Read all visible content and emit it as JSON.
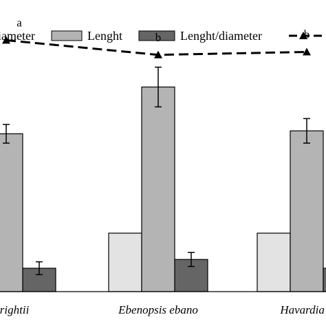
{
  "chart_data": {
    "type": "bar",
    "categories": [
      "a wrightii",
      "Ebenopsis ebano",
      "Havardia p"
    ],
    "series": [
      {
        "name": "iameter",
        "color": "#e3e3e3",
        "values": [
          null,
          1.0,
          1.0
        ],
        "errors": [
          null,
          0,
          0
        ]
      },
      {
        "name": "Lenght",
        "color": "#b4b4b4",
        "values": [
          2.7,
          3.5,
          2.75
        ],
        "errors": [
          0.16,
          0.34,
          0.21
        ]
      },
      {
        "name": "Lenght/diameter",
        "color": "#656565",
        "values": [
          0.4,
          0.55,
          0.4
        ],
        "errors": [
          0.11,
          0.12,
          0.1
        ]
      }
    ],
    "line_series": {
      "name": "",
      "color": "#000000",
      "style": "dashed",
      "marker": "triangle",
      "values": [
        4.3,
        4.05,
        4.1
      ],
      "labels": [
        "a",
        "b",
        "b"
      ]
    },
    "ylim": [
      0,
      5
    ],
    "grid": false,
    "legend": "top",
    "xlabel": "",
    "ylabel": ""
  }
}
